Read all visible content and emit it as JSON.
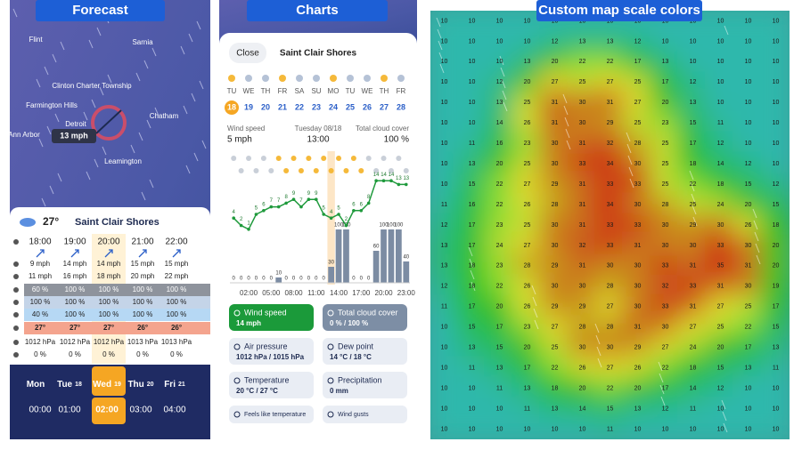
{
  "tabs": [
    "Forecast",
    "Charts",
    "Custom map scale colors"
  ],
  "forecast": {
    "map_labels": [
      "Flint",
      "Sarnia",
      "Clinton Charter Township",
      "Farmington Hills",
      "Chatham",
      "Ann Arbor",
      "Detroit",
      "Leamington"
    ],
    "wind_badge": "13 mph",
    "location": {
      "temp": "27°",
      "name": "Saint Clair Shores"
    },
    "hours": [
      "18:00",
      "19:00",
      "20:00",
      "21:00",
      "22:00"
    ],
    "rows": {
      "wind": [
        "9 mph",
        "14 mph",
        "14 mph",
        "15 mph",
        "15 mph"
      ],
      "gusts": [
        "11 mph",
        "16 mph",
        "18 mph",
        "20 mph",
        "22 mph"
      ],
      "cloud_high": [
        "60 %",
        "100 %",
        "100 %",
        "100 %",
        "100 %"
      ],
      "cloud_mid": [
        "100 %",
        "100 %",
        "100 %",
        "100 %",
        "100 %"
      ],
      "cloud_low": [
        "40 %",
        "100 %",
        "100 %",
        "100 %",
        "100 %"
      ],
      "temp": [
        "27°",
        "27°",
        "27°",
        "26°",
        "26°"
      ],
      "pressure": [
        "1012 hPa",
        "1012 hPa",
        "1012 hPa",
        "1013 hPa",
        "1013 hPa"
      ],
      "precip": [
        "0 %",
        "0 %",
        "0 %",
        "0 %",
        "0 %"
      ]
    },
    "days": [
      {
        "name": "Mon"
      },
      {
        "name": "Tue",
        "date": "18"
      },
      {
        "name": "Wed",
        "date": "19"
      },
      {
        "name": "Thu",
        "date": "20"
      },
      {
        "name": "Fri",
        "date": "21"
      }
    ],
    "times": [
      "00:00",
      "01:00",
      "02:00",
      "03:00",
      "04:00"
    ]
  },
  "charts": {
    "close": "Close",
    "location": "Saint Clair Shores",
    "weekdays": [
      "TU",
      "WE",
      "TH",
      "FR",
      "SA",
      "SU",
      "MO",
      "TU",
      "WE",
      "TH",
      "FR"
    ],
    "dates": [
      "18",
      "19",
      "20",
      "21",
      "22",
      "23",
      "24",
      "25",
      "26",
      "27",
      "28"
    ],
    "info": [
      {
        "label": "Wind speed",
        "value": "5 mph"
      },
      {
        "label": "Tuesday 08/18",
        "value": "13:00"
      },
      {
        "label": "Total cloud cover",
        "value": "100 %"
      }
    ],
    "wind": [
      4,
      2,
      1,
      5,
      6,
      7,
      7,
      8,
      9,
      7,
      9,
      9,
      5,
      4,
      5,
      2,
      6,
      6,
      8,
      14,
      14,
      14,
      13,
      13
    ],
    "cloud": [
      0,
      0,
      0,
      0,
      0,
      0,
      10,
      0,
      0,
      0,
      0,
      0,
      0,
      30,
      100,
      100,
      0,
      0,
      0,
      60,
      100,
      100,
      100,
      40
    ],
    "x_labels": [
      "02:00",
      "05:00",
      "08:00",
      "11:00",
      "14:00",
      "17:00",
      "20:00",
      "23:00"
    ],
    "buttons": [
      {
        "label": "Wind speed",
        "value": "14 mph"
      },
      {
        "label": "Total cloud cover",
        "value": "0 % / 100 %"
      },
      {
        "label": "Air pressure",
        "value": "1012 hPa / 1015 hPa"
      },
      {
        "label": "Dew point",
        "value": "14 °C / 18 °C"
      },
      {
        "label": "Temperature",
        "value": "20 °C / 27 °C"
      },
      {
        "label": "Precipitation",
        "value": "0 mm"
      },
      {
        "label": "Feels like temperature"
      },
      {
        "label": "Wind gusts"
      }
    ]
  },
  "map_scale": {
    "grid": [
      [
        10,
        10,
        10,
        10,
        10,
        10,
        10,
        10,
        10,
        10,
        10,
        10,
        10
      ],
      [
        10,
        10,
        10,
        10,
        12,
        13,
        13,
        12,
        10,
        10,
        10,
        10,
        10
      ],
      [
        10,
        10,
        10,
        13,
        20,
        22,
        22,
        17,
        13,
        10,
        10,
        10,
        10
      ],
      [
        10,
        10,
        12,
        20,
        27,
        25,
        27,
        25,
        17,
        12,
        10,
        10,
        10
      ],
      [
        10,
        10,
        13,
        25,
        31,
        30,
        31,
        27,
        20,
        13,
        10,
        10,
        10
      ],
      [
        10,
        10,
        14,
        26,
        31,
        30,
        29,
        25,
        23,
        15,
        11,
        10,
        10
      ],
      [
        10,
        11,
        16,
        23,
        30,
        31,
        32,
        28,
        25,
        17,
        12,
        10,
        10
      ],
      [
        10,
        13,
        20,
        25,
        30,
        33,
        34,
        30,
        25,
        18,
        14,
        12,
        10
      ],
      [
        10,
        15,
        22,
        27,
        29,
        31,
        33,
        33,
        25,
        22,
        18,
        15,
        12
      ],
      [
        11,
        16,
        22,
        26,
        28,
        31,
        34,
        30,
        28,
        25,
        24,
        20,
        15
      ],
      [
        12,
        17,
        23,
        25,
        30,
        31,
        33,
        33,
        30,
        29,
        30,
        26,
        18
      ],
      [
        13,
        17,
        24,
        27,
        30,
        32,
        33,
        31,
        30,
        30,
        33,
        30,
        20
      ],
      [
        13,
        18,
        23,
        28,
        29,
        31,
        30,
        30,
        33,
        31,
        35,
        31,
        20
      ],
      [
        12,
        18,
        22,
        26,
        30,
        30,
        28,
        30,
        32,
        33,
        31,
        30,
        19
      ],
      [
        11,
        17,
        20,
        26,
        29,
        29,
        27,
        30,
        33,
        31,
        27,
        25,
        17
      ],
      [
        10,
        15,
        17,
        23,
        27,
        28,
        28,
        31,
        30,
        27,
        25,
        22,
        15
      ],
      [
        10,
        13,
        15,
        20,
        25,
        30,
        30,
        29,
        27,
        24,
        20,
        17,
        13
      ],
      [
        10,
        11,
        13,
        17,
        22,
        26,
        27,
        26,
        22,
        18,
        15,
        13,
        11
      ],
      [
        10,
        10,
        11,
        13,
        18,
        20,
        22,
        20,
        17,
        14,
        12,
        10,
        10
      ],
      [
        10,
        10,
        10,
        11,
        13,
        14,
        15,
        13,
        12,
        11,
        10,
        10,
        10
      ],
      [
        10,
        10,
        10,
        10,
        10,
        10,
        11,
        10,
        10,
        10,
        10,
        10,
        10
      ]
    ]
  }
}
